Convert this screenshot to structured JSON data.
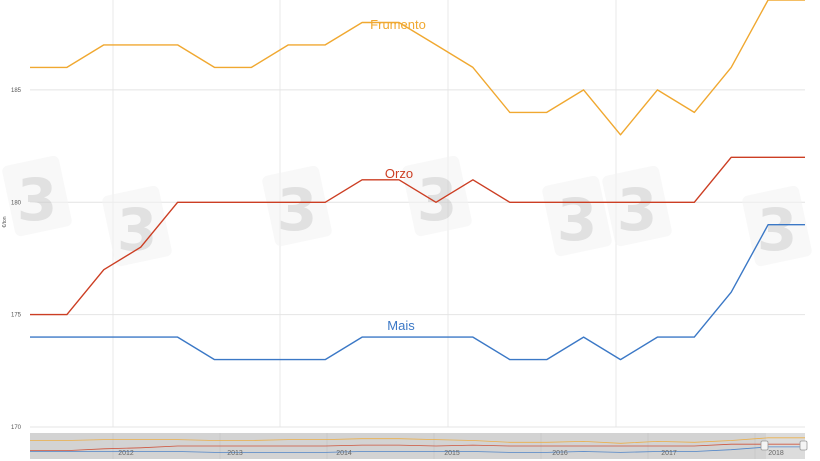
{
  "chart_data": {
    "type": "line",
    "ylabel": "€/ton",
    "ylim": [
      170,
      189
    ],
    "yticks": [
      170,
      175,
      180,
      185
    ],
    "grid": true,
    "x": [
      0,
      1,
      2,
      3,
      4,
      5,
      6,
      7,
      8,
      9,
      10,
      11,
      12,
      13,
      14,
      15,
      16,
      17,
      18,
      19,
      20,
      21
    ],
    "series": [
      {
        "name": "Frumento",
        "color": "#f0a830",
        "values": [
          186,
          186,
          187,
          187,
          187,
          186,
          186,
          187,
          187,
          188,
          188,
          187,
          186,
          184,
          184,
          185,
          183,
          185,
          184,
          186,
          189,
          189
        ]
      },
      {
        "name": "Orzo",
        "color": "#cc3e23",
        "values": [
          175,
          175,
          177,
          178,
          180,
          180,
          180,
          180,
          180,
          181,
          181,
          180,
          181,
          180,
          180,
          180,
          180,
          180,
          180,
          182,
          182,
          182
        ]
      },
      {
        "name": "Mais",
        "color": "#3b78c6",
        "values": [
          174,
          174,
          174,
          174,
          174,
          173,
          173,
          173,
          173,
          174,
          174,
          174,
          174,
          173,
          173,
          174,
          173,
          174,
          174,
          176,
          179,
          179
        ]
      }
    ],
    "navigator": {
      "year_labels": [
        "2012",
        "2013",
        "2014",
        "2015",
        "2016",
        "2017",
        "2018"
      ]
    },
    "watermark_text": "3"
  }
}
